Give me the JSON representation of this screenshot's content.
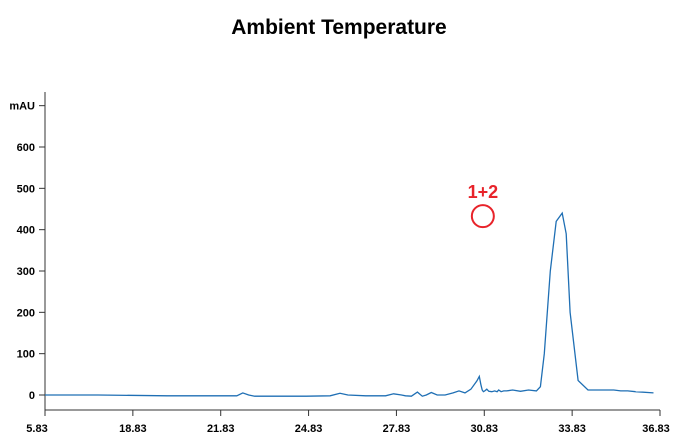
{
  "chart_data": {
    "type": "line",
    "title": "Ambient Temperature",
    "ylabel": "mAU",
    "xlabel": "",
    "xlim": [
      5.83,
      36.83
    ],
    "ylim": [
      0,
      700
    ],
    "x_ticks": [
      "5.83",
      "18.83",
      "21.83",
      "24.83",
      "27.83",
      "30.83",
      "33.83",
      "36.83"
    ],
    "y_ticks": [
      "0",
      "100",
      "200",
      "300",
      "400",
      "500",
      "600"
    ],
    "grid": false,
    "colors": {
      "line": "#1f6fb4",
      "annotation": "#e8232a"
    },
    "annotation": {
      "label": "1+2",
      "x": 27.9,
      "y": 440
    },
    "series": [
      {
        "x": [
          5.83,
          8.5,
          12.0,
          15.5,
          15.8,
          16.1,
          16.4,
          17.0,
          19.0,
          20.2,
          20.7,
          21.1,
          22.0,
          22.7,
          23.0,
          23.4,
          23.8,
          24.0,
          24.3,
          24.6,
          24.85,
          25.05,
          25.3,
          25.6,
          26.0,
          26.4,
          26.7,
          27.0,
          27.3,
          27.6,
          27.72,
          27.8,
          27.87,
          27.93,
          28.0,
          28.1,
          28.2,
          28.35,
          28.5,
          28.62,
          28.7,
          28.82,
          28.95,
          29.1,
          29.4,
          29.8,
          30.2,
          30.6,
          30.8,
          31.0,
          31.3,
          31.6,
          31.9,
          32.1,
          32.3,
          32.7,
          33.2,
          34.5,
          34.85,
          35.2,
          35.6,
          36.5
        ],
        "y": [
          0,
          0,
          -2,
          -2,
          5,
          0,
          -3,
          -3,
          -3,
          -2,
          4,
          0,
          -2,
          -2,
          -2,
          3,
          0,
          -2,
          -3,
          7,
          -3,
          0,
          6,
          0,
          0,
          5,
          10,
          5,
          14,
          34,
          45,
          25,
          12,
          8,
          10,
          14,
          9,
          8,
          10,
          8,
          12,
          8,
          10,
          10,
          12,
          9,
          12,
          10,
          20,
          100,
          300,
          420,
          440,
          390,
          200,
          35,
          12,
          12,
          10,
          10,
          8,
          5
        ]
      }
    ]
  }
}
